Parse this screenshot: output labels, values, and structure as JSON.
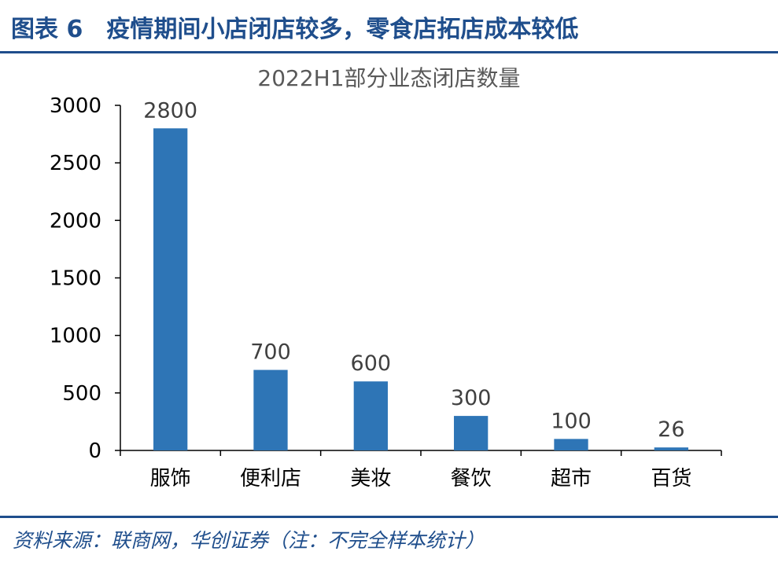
{
  "header": {
    "figure_title": "图表 6　疫情期间小店闭店较多，零食店拓店成本较低"
  },
  "chart_data": {
    "type": "bar",
    "title": "2022H1部分业态闭店数量",
    "categories": [
      "服饰",
      "便利店",
      "美妆",
      "餐饮",
      "超市",
      "百货"
    ],
    "values": [
      2800,
      700,
      600,
      300,
      100,
      26
    ],
    "ylim": [
      0,
      3000
    ],
    "yticks": [
      0,
      500,
      1000,
      1500,
      2000,
      2500,
      3000
    ],
    "xlabel": "",
    "ylabel": "",
    "grid": false,
    "bar_color": "#2e75b6"
  },
  "footer": {
    "source": "资料来源：联商网，华创证券（注：不完全样本统计）"
  }
}
